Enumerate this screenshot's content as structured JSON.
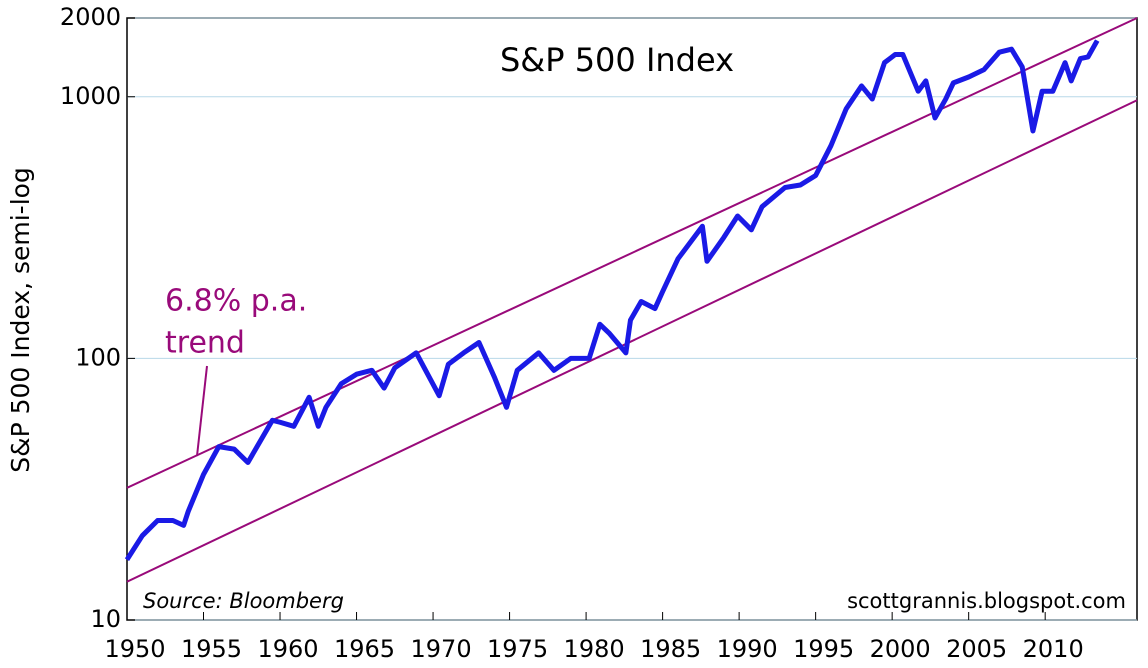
{
  "chart_data": {
    "type": "line",
    "title": "S&P 500 Index",
    "y_label": "S&P 500 Index, semi-log",
    "annotation": "6.8% p.a.",
    "annotation_2": "trend",
    "source": "Source: Bloomberg",
    "credit": "scottgrannis.blogspot.com",
    "log_y": true,
    "grid": true,
    "xlim": [
      1950,
      2016
    ],
    "xticks": [
      1950,
      1955,
      1960,
      1965,
      1970,
      1975,
      1980,
      1985,
      1990,
      1995,
      2000,
      2005,
      2010
    ],
    "ylim": [
      10,
      2000
    ],
    "yticks": [
      10,
      100,
      1000,
      2000
    ],
    "series": [
      {
        "name": "S&P 500 Index",
        "color": "#1a1ae6",
        "x": [
          1950,
          1951,
          1952,
          1953,
          1953.7,
          1954,
          1955,
          1956,
          1957,
          1957.9,
          1958.5,
          1959.5,
          1960,
          1960.9,
          1961.9,
          1962.5,
          1963,
          1964,
          1965,
          1966,
          1966.8,
          1967.5,
          1968.9,
          1970.4,
          1971,
          1972,
          1973,
          1974,
          1974.8,
          1975.5,
          1976.9,
          1977.9,
          1979,
          1980.2,
          1980.9,
          1981.5,
          1982.6,
          1982.9,
          1983.6,
          1984.5,
          1985,
          1986,
          1987.6,
          1987.9,
          1989,
          1989.9,
          1990.8,
          1991.5,
          1993,
          1994,
          1995,
          1996,
          1997,
          1998,
          1998.7,
          1999.5,
          2000.2,
          2000.7,
          2001.7,
          2002.2,
          2002.8,
          2003.5,
          2004,
          2005,
          2006,
          2007,
          2007.8,
          2008.5,
          2009.2,
          2009.8,
          2010.5,
          2011.3,
          2011.7,
          2012.3,
          2012.8,
          2013.4
        ],
        "values": [
          17,
          21,
          24,
          24,
          23,
          26,
          36,
          46,
          45,
          40,
          46,
          58,
          57,
          55,
          71,
          55,
          65,
          80,
          87,
          90,
          77,
          92,
          105,
          72,
          95,
          105,
          115,
          85,
          65,
          90,
          105,
          90,
          100,
          100,
          135,
          125,
          105,
          140,
          165,
          155,
          180,
          240,
          320,
          235,
          290,
          350,
          310,
          380,
          450,
          460,
          500,
          650,
          900,
          1100,
          980,
          1350,
          1450,
          1450,
          1050,
          1150,
          830,
          980,
          1130,
          1190,
          1270,
          1480,
          1520,
          1300,
          740,
          1050,
          1050,
          1350,
          1150,
          1400,
          1420,
          1640
        ]
      },
      {
        "name": "upper trend",
        "color": "#990a7a",
        "x": [
          1950,
          2016
        ],
        "values": [
          32,
          2000
        ]
      },
      {
        "name": "lower trend",
        "color": "#990a7a",
        "x": [
          1950,
          2016
        ],
        "values": [
          14,
          970
        ]
      }
    ]
  }
}
